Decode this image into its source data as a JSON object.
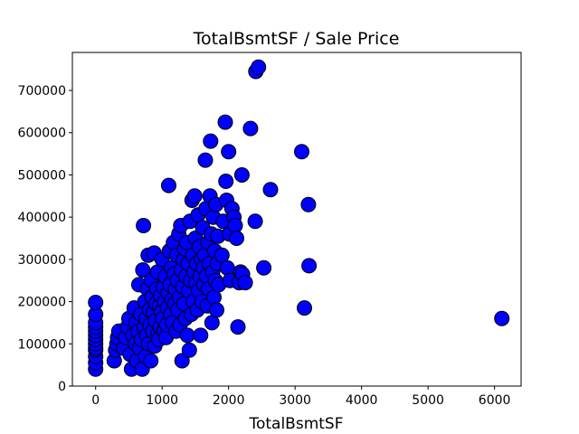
{
  "chart_data": {
    "type": "scatter",
    "title": "TotalBsmtSF / Sale Price",
    "xlabel": "TotalBsmtSF",
    "ylabel": "",
    "xlim": [
      -350,
      6400
    ],
    "ylim": [
      0,
      790000
    ],
    "xticks": [
      0,
      1000,
      2000,
      3000,
      4000,
      5000,
      6000
    ],
    "xtick_labels": [
      "0",
      "1000",
      "2000",
      "3000",
      "4000",
      "5000",
      "6000"
    ],
    "yticks": [
      0,
      100000,
      200000,
      300000,
      400000,
      500000,
      600000,
      700000
    ],
    "ytick_labels": [
      "0",
      "100000",
      "200000",
      "300000",
      "400000",
      "500000",
      "600000",
      "700000"
    ],
    "grid": false,
    "marker_color": "#0000ff",
    "marker_edge": "#000000",
    "points": [
      [
        0,
        40000
      ],
      [
        0,
        55000
      ],
      [
        0,
        70000
      ],
      [
        0,
        85000
      ],
      [
        0,
        90000
      ],
      [
        0,
        100000
      ],
      [
        0,
        110000
      ],
      [
        0,
        120000
      ],
      [
        0,
        130000
      ],
      [
        0,
        140000
      ],
      [
        0,
        150000
      ],
      [
        0,
        170000
      ],
      [
        0,
        198000
      ],
      [
        280,
        60000
      ],
      [
        300,
        85000
      ],
      [
        320,
        100000
      ],
      [
        330,
        115000
      ],
      [
        350,
        130000
      ],
      [
        420,
        90000
      ],
      [
        450,
        115000
      ],
      [
        480,
        140000
      ],
      [
        500,
        160000
      ],
      [
        520,
        75000
      ],
      [
        540,
        40000
      ],
      [
        560,
        120000
      ],
      [
        580,
        185000
      ],
      [
        600,
        100000
      ],
      [
        610,
        150000
      ],
      [
        620,
        60000
      ],
      [
        640,
        130000
      ],
      [
        650,
        240000
      ],
      [
        660,
        90000
      ],
      [
        680,
        170000
      ],
      [
        690,
        110000
      ],
      [
        700,
        40000
      ],
      [
        710,
        275000
      ],
      [
        720,
        380000
      ],
      [
        730,
        140000
      ],
      [
        740,
        200000
      ],
      [
        750,
        70000
      ],
      [
        760,
        160000
      ],
      [
        770,
        120000
      ],
      [
        780,
        230000
      ],
      [
        790,
        310000
      ],
      [
        800,
        100000
      ],
      [
        810,
        180000
      ],
      [
        820,
        145000
      ],
      [
        830,
        60000
      ],
      [
        840,
        250000
      ],
      [
        850,
        210000
      ],
      [
        860,
        130000
      ],
      [
        870,
        175000
      ],
      [
        880,
        315000
      ],
      [
        890,
        95000
      ],
      [
        900,
        155000
      ],
      [
        910,
        195000
      ],
      [
        920,
        230000
      ],
      [
        930,
        270000
      ],
      [
        940,
        125000
      ],
      [
        950,
        110000
      ],
      [
        960,
        190000
      ],
      [
        970,
        140000
      ],
      [
        980,
        215000
      ],
      [
        990,
        175000
      ],
      [
        1000,
        300000
      ],
      [
        1010,
        160000
      ],
      [
        1020,
        235000
      ],
      [
        1030,
        130000
      ],
      [
        1040,
        200000
      ],
      [
        1050,
        260000
      ],
      [
        1060,
        115000
      ],
      [
        1070,
        145000
      ],
      [
        1080,
        185000
      ],
      [
        1090,
        220000
      ],
      [
        1100,
        475000
      ],
      [
        1110,
        320000
      ],
      [
        1120,
        240000
      ],
      [
        1130,
        170000
      ],
      [
        1140,
        280000
      ],
      [
        1150,
        205000
      ],
      [
        1160,
        150000
      ],
      [
        1170,
        340000
      ],
      [
        1180,
        265000
      ],
      [
        1190,
        195000
      ],
      [
        1200,
        230000
      ],
      [
        1210,
        130000
      ],
      [
        1220,
        310000
      ],
      [
        1230,
        250000
      ],
      [
        1240,
        180000
      ],
      [
        1250,
        360000
      ],
      [
        1260,
        210000
      ],
      [
        1270,
        145000
      ],
      [
        1280,
        380000
      ],
      [
        1290,
        275000
      ],
      [
        1300,
        60000
      ],
      [
        1310,
        235000
      ],
      [
        1320,
        300000
      ],
      [
        1330,
        195000
      ],
      [
        1340,
        325000
      ],
      [
        1350,
        160000
      ],
      [
        1360,
        260000
      ],
      [
        1370,
        340000
      ],
      [
        1380,
        120000
      ],
      [
        1390,
        290000
      ],
      [
        1400,
        225000
      ],
      [
        1410,
        85000
      ],
      [
        1420,
        390000
      ],
      [
        1430,
        250000
      ],
      [
        1440,
        170000
      ],
      [
        1450,
        440000
      ],
      [
        1460,
        310000
      ],
      [
        1470,
        200000
      ],
      [
        1480,
        270000
      ],
      [
        1490,
        450000
      ],
      [
        1500,
        350000
      ],
      [
        1510,
        245000
      ],
      [
        1520,
        290000
      ],
      [
        1530,
        180000
      ],
      [
        1540,
        405000
      ],
      [
        1550,
        225000
      ],
      [
        1560,
        330000
      ],
      [
        1570,
        260000
      ],
      [
        1580,
        120000
      ],
      [
        1590,
        300000
      ],
      [
        1600,
        200000
      ],
      [
        1610,
        375000
      ],
      [
        1620,
        280000
      ],
      [
        1630,
        240000
      ],
      [
        1640,
        310000
      ],
      [
        1650,
        535000
      ],
      [
        1660,
        420000
      ],
      [
        1670,
        260000
      ],
      [
        1680,
        190000
      ],
      [
        1690,
        340000
      ],
      [
        1700,
        230000
      ],
      [
        1710,
        290000
      ],
      [
        1720,
        450000
      ],
      [
        1730,
        580000
      ],
      [
        1740,
        360000
      ],
      [
        1750,
        150000
      ],
      [
        1760,
        270000
      ],
      [
        1770,
        400000
      ],
      [
        1780,
        210000
      ],
      [
        1790,
        320000
      ],
      [
        1800,
        250000
      ],
      [
        1810,
        430000
      ],
      [
        1820,
        180000
      ],
      [
        1830,
        290000
      ],
      [
        1840,
        355000
      ],
      [
        1850,
        240000
      ],
      [
        1900,
        310000
      ],
      [
        1920,
        390000
      ],
      [
        1950,
        625000
      ],
      [
        1960,
        485000
      ],
      [
        1970,
        440000
      ],
      [
        1980,
        280000
      ],
      [
        2000,
        555000
      ],
      [
        2010,
        360000
      ],
      [
        2020,
        250000
      ],
      [
        2050,
        420000
      ],
      [
        2080,
        400000
      ],
      [
        2100,
        380000
      ],
      [
        2120,
        350000
      ],
      [
        2140,
        140000
      ],
      [
        2160,
        245000
      ],
      [
        2180,
        270000
      ],
      [
        2200,
        500000
      ],
      [
        2210,
        265000
      ],
      [
        2250,
        245000
      ],
      [
        2330,
        610000
      ],
      [
        2400,
        390000
      ],
      [
        2410,
        745000
      ],
      [
        2450,
        755000
      ],
      [
        2530,
        280000
      ],
      [
        2630,
        465000
      ],
      [
        3100,
        555000
      ],
      [
        3140,
        185000
      ],
      [
        3200,
        430000
      ],
      [
        3210,
        285000
      ],
      [
        6110,
        160000
      ]
    ]
  }
}
